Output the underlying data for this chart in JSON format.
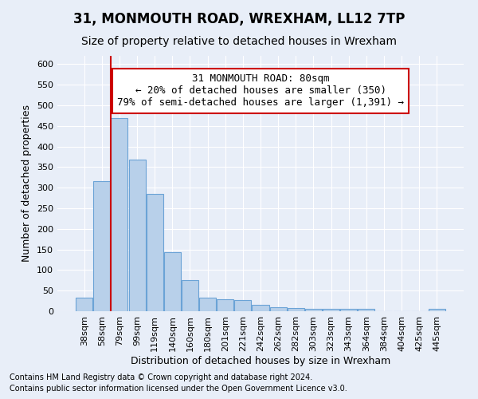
{
  "title": "31, MONMOUTH ROAD, WREXHAM, LL12 7TP",
  "subtitle": "Size of property relative to detached houses in Wrexham",
  "xlabel": "Distribution of detached houses by size in Wrexham",
  "ylabel": "Number of detached properties",
  "categories": [
    "38sqm",
    "58sqm",
    "79sqm",
    "99sqm",
    "119sqm",
    "140sqm",
    "160sqm",
    "180sqm",
    "201sqm",
    "221sqm",
    "242sqm",
    "262sqm",
    "282sqm",
    "303sqm",
    "323sqm",
    "343sqm",
    "364sqm",
    "384sqm",
    "404sqm",
    "425sqm",
    "445sqm"
  ],
  "values": [
    32,
    315,
    468,
    368,
    284,
    143,
    76,
    32,
    29,
    27,
    16,
    9,
    7,
    5,
    5,
    5,
    5,
    0,
    0,
    0,
    6
  ],
  "bar_color": "#b8d0ea",
  "bar_edge_color": "#6ba3d6",
  "annotation_title": "31 MONMOUTH ROAD: 80sqm",
  "annotation_line1": "← 20% of detached houses are smaller (350)",
  "annotation_line2": "79% of semi-detached houses are larger (1,391) →",
  "annotation_box_color": "#ffffff",
  "annotation_box_edge_color": "#cc0000",
  "vline_color": "#cc0000",
  "ylim": [
    0,
    620
  ],
  "yticks": [
    0,
    50,
    100,
    150,
    200,
    250,
    300,
    350,
    400,
    450,
    500,
    550,
    600
  ],
  "footnote1": "Contains HM Land Registry data © Crown copyright and database right 2024.",
  "footnote2": "Contains public sector information licensed under the Open Government Licence v3.0.",
  "bg_color": "#e8eef8",
  "plot_bg_color": "#e8eef8",
  "grid_color": "#ffffff",
  "title_fontsize": 12,
  "subtitle_fontsize": 10,
  "axis_label_fontsize": 9,
  "tick_fontsize": 8,
  "footnote_fontsize": 7,
  "annot_fontsize": 9
}
